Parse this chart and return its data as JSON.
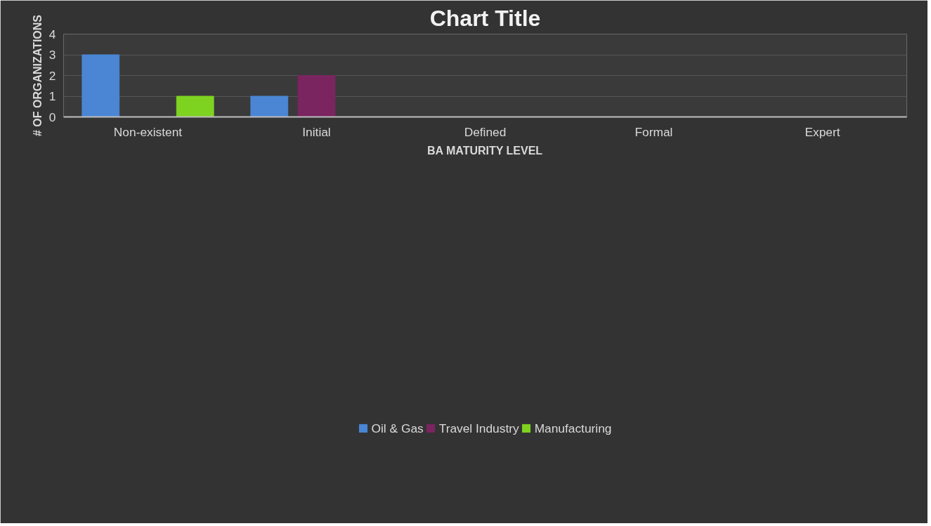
{
  "chart_data": {
    "type": "bar",
    "title": "Chart Title",
    "xlabel": "BA MATURITY LEVEL",
    "ylabel": "# OF ORGANIZATIONS",
    "categories": [
      "Non-existent",
      "Initial",
      "Defined",
      "Formal",
      "Expert"
    ],
    "series": [
      {
        "name": "Oil & Gas",
        "color": "#4a86d4",
        "values": [
          3,
          1,
          0,
          0,
          0
        ]
      },
      {
        "name": "Travel Industry",
        "color": "#7a2560",
        "values": [
          0,
          2,
          0,
          0,
          0
        ]
      },
      {
        "name": "Manufacturing",
        "color": "#7ed321",
        "values": [
          1,
          0,
          0,
          0,
          0
        ]
      }
    ],
    "ylim": [
      0,
      4
    ],
    "yticks": [
      0,
      1,
      2,
      3,
      4
    ],
    "grid": "y",
    "legend": "bottom"
  }
}
